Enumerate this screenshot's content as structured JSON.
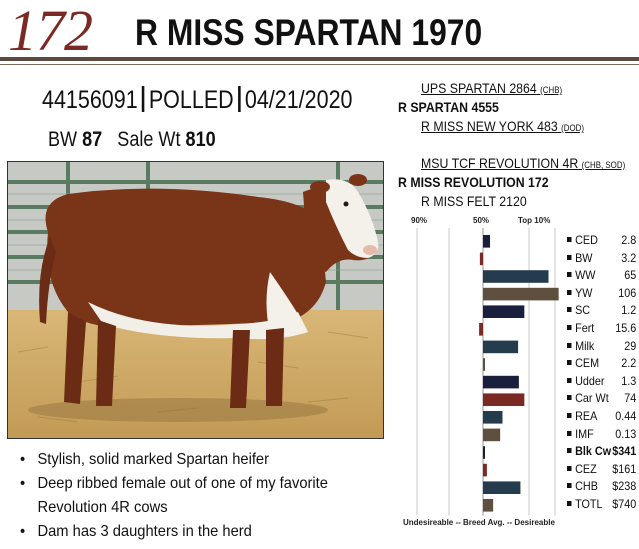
{
  "header": {
    "lot_number": "172",
    "name": "R MISS SPARTAN 1970"
  },
  "registration": {
    "number": "44156091",
    "polled": "POLLED",
    "birth_date": "04/21/2020"
  },
  "weights": {
    "bw_label": "BW",
    "bw_value": "87",
    "sale_label": "Sale Wt",
    "sale_value": "810"
  },
  "pedigree": {
    "sire_sire": {
      "name": "UPS SPARTAN 2864",
      "suffix": "(CHB)"
    },
    "sire": {
      "name": "R SPARTAN 4555"
    },
    "sire_dam": {
      "name": "R MISS NEW YORK 483",
      "suffix": "(DOD)"
    },
    "dam_sire": {
      "name": "MSU TCF REVOLUTION 4R",
      "suffix": "(CHB, SOD)"
    },
    "dam": {
      "name": "R MISS REVOLUTION 172"
    },
    "dam_dam": {
      "name": "R MISS FELT 2120"
    }
  },
  "bullets": [
    "Stylish, solid marked Spartan heifer",
    "Deep ribbed female out of one of my favorite Revolution 4R cows",
    "Dam has 3 daughters in the herd"
  ],
  "chart_data": {
    "type": "bar",
    "orientation": "horizontal",
    "header_labels": [
      "90%",
      "50%",
      "Top 10%"
    ],
    "footer_label": "Undesireable -- Breed Avg. -- Desireable",
    "xlim": [
      -1,
      1
    ],
    "categories": [
      "CED",
      "BW",
      "WW",
      "YW",
      "SC",
      "Fert",
      "Milk",
      "CEM",
      "Udder",
      "Car Wt",
      "REA",
      "IMF",
      "Blk Cw",
      "CEZ",
      "CHB",
      "TOTL"
    ],
    "display_values": [
      "2.8",
      "3.2",
      "65",
      "106",
      "1.2",
      "15.6",
      "29",
      "2.2",
      "1.3",
      "74",
      "0.44",
      "0.13",
      "$341",
      "$161",
      "$238",
      "$740"
    ],
    "values": [
      0.09,
      -0.04,
      0.84,
      0.97,
      0.53,
      -0.05,
      0.45,
      0.02,
      0.46,
      0.53,
      0.25,
      0.22,
      0.01,
      0.05,
      0.48,
      0.13
    ],
    "colors": [
      "#1a1f3d",
      "#7a2a22",
      "#253c4f",
      "#5e4f3e",
      "#1a1f3d",
      "#7a2a22",
      "#253c4f",
      "#5e4f3e",
      "#1a1f3d",
      "#7a2a22",
      "#253c4f",
      "#5e4f3e",
      "#1a1f3d",
      "#7a2a22",
      "#253c4f",
      "#5e4f3e"
    ],
    "bold_categories": [
      "Blk Cw"
    ]
  }
}
